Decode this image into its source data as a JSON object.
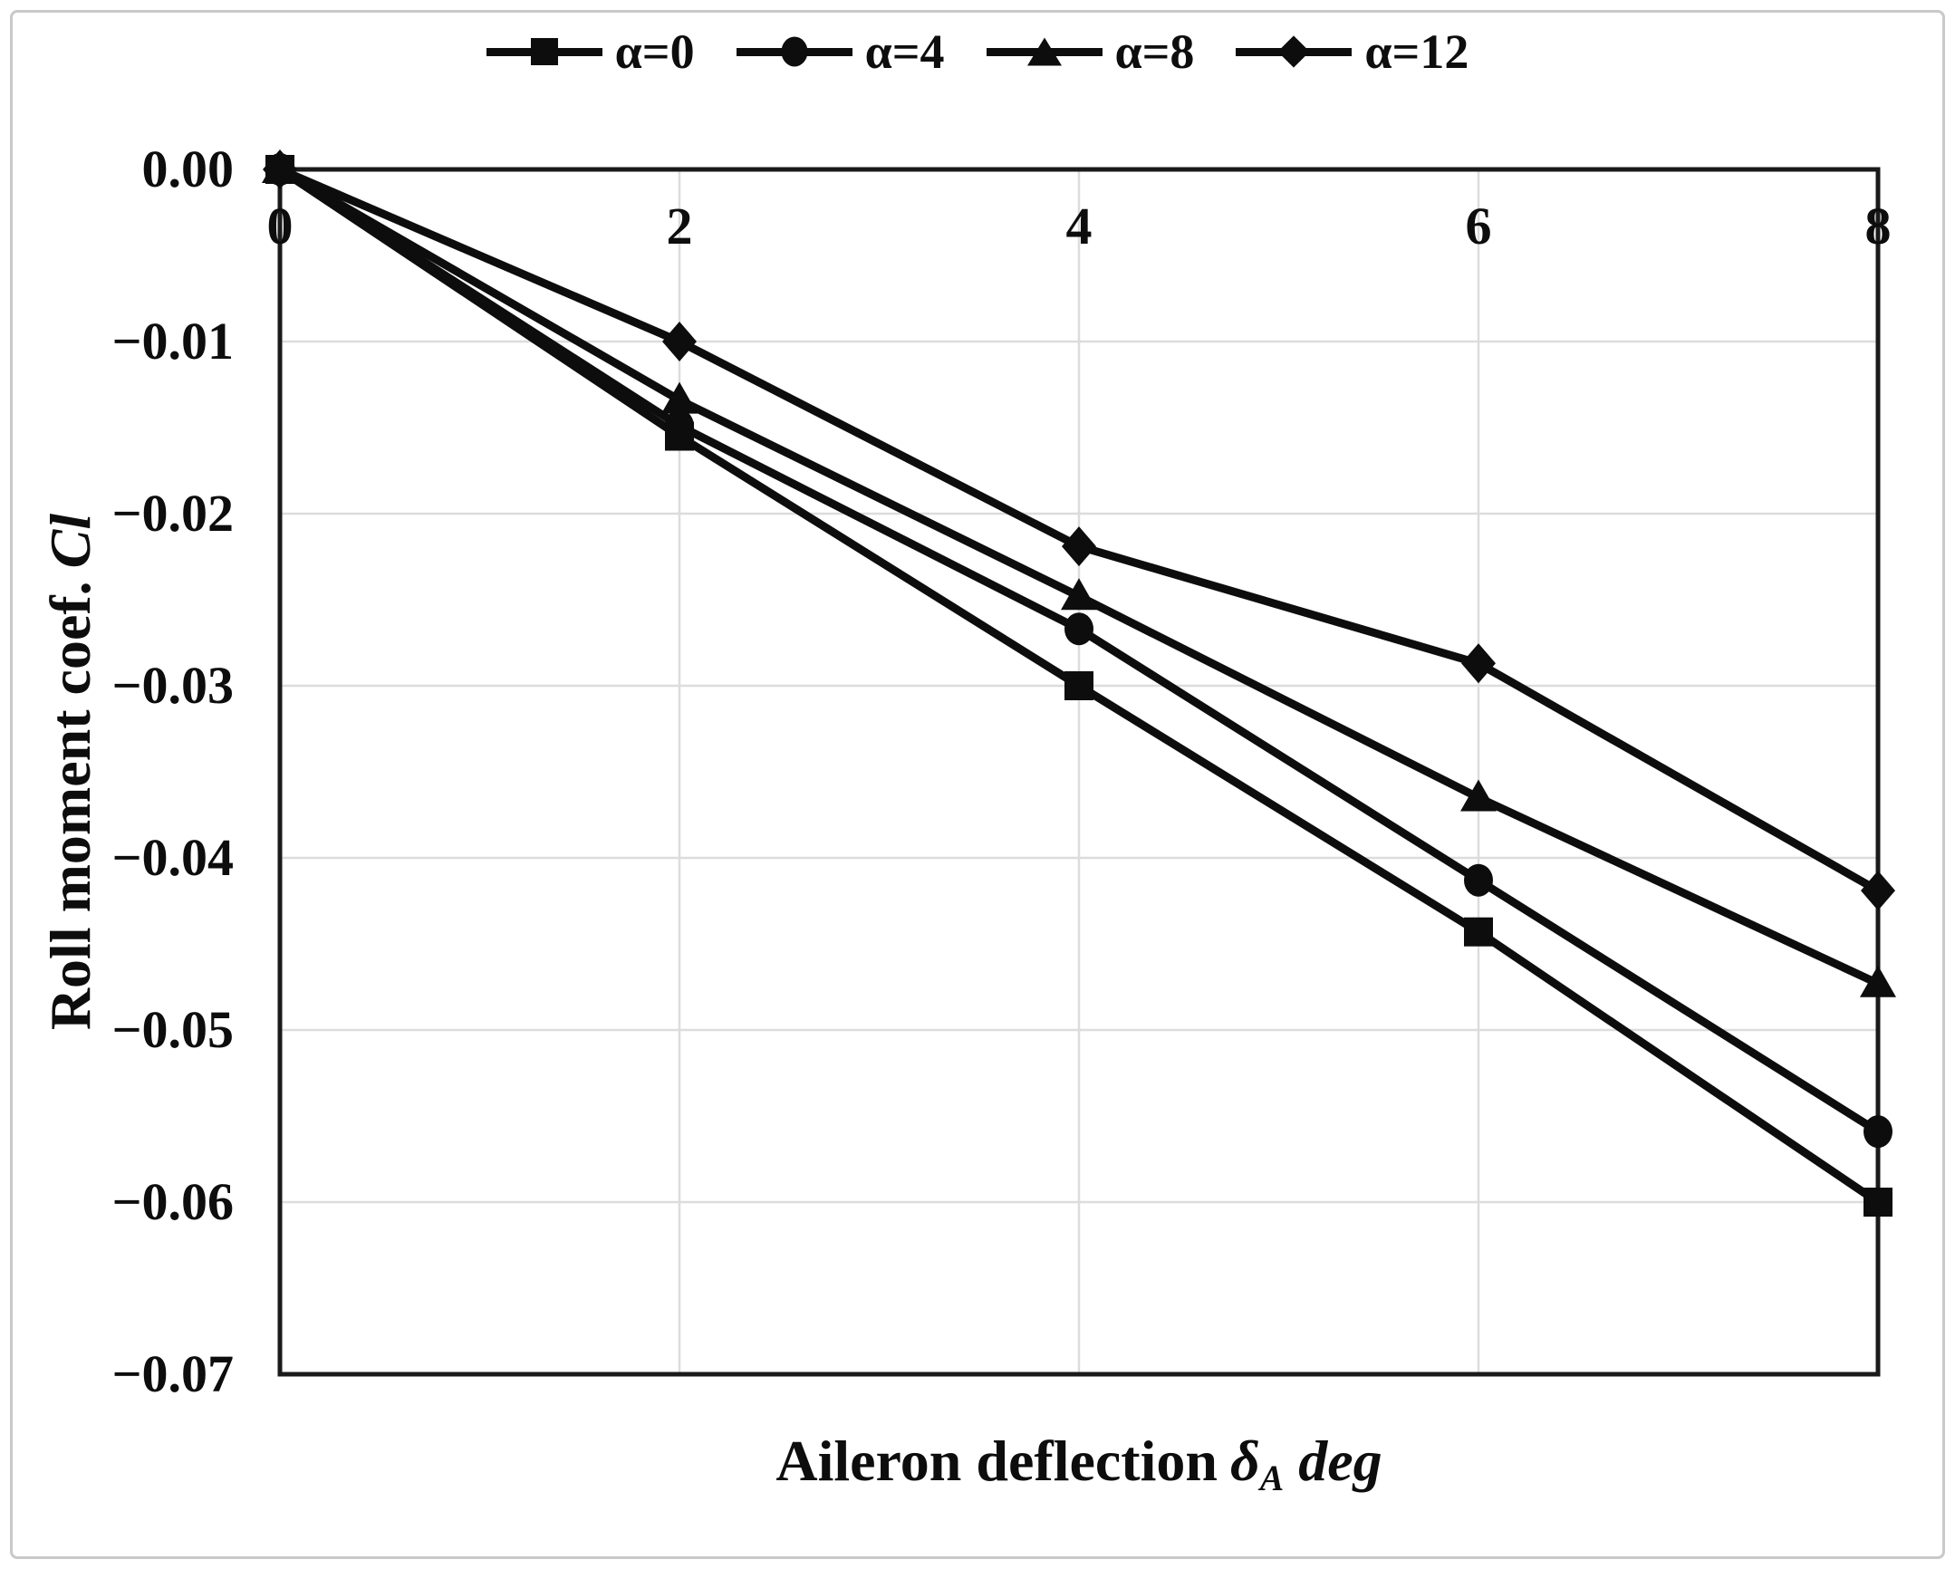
{
  "legend": {
    "items": [
      {
        "label": "α=0",
        "marker": "square"
      },
      {
        "label": "α=4",
        "marker": "circle"
      },
      {
        "label": "α=8",
        "marker": "triangle"
      },
      {
        "label": "α=12",
        "marker": "diamond"
      }
    ]
  },
  "axes": {
    "x_ticks": [
      "0",
      "2",
      "4",
      "6",
      "8"
    ],
    "y_ticks": [
      "0.00",
      "−0.01",
      "−0.02",
      "−0.03",
      "−0.04",
      "−0.05",
      "−0.06",
      "−0.07"
    ],
    "xlabel": {
      "main": "Aileron deflection",
      "symbol": "δ",
      "sub": "A",
      "unit": "deg"
    },
    "ylabel": {
      "main": "Roll moment coef.",
      "symbol": "Cl"
    }
  },
  "chart_data": {
    "type": "line",
    "title": "",
    "xlabel": "Aileron deflection δA deg",
    "ylabel": "Roll moment coef. Cl",
    "x": [
      0,
      2,
      4,
      6,
      8
    ],
    "series": [
      {
        "name": "α=0",
        "marker": "square",
        "values": [
          0.0,
          -0.0155,
          -0.03,
          -0.0443,
          -0.06
        ]
      },
      {
        "name": "α=4",
        "marker": "circle",
        "values": [
          0.0,
          -0.0149,
          -0.0267,
          -0.0413,
          -0.0559
        ]
      },
      {
        "name": "α=8",
        "marker": "triangle",
        "values": [
          0.0,
          -0.0134,
          -0.0248,
          -0.0365,
          -0.0473
        ]
      },
      {
        "name": "α=12",
        "marker": "diamond",
        "values": [
          0.0,
          -0.01,
          -0.0219,
          -0.0287,
          -0.0419
        ]
      }
    ],
    "xlim": [
      0,
      8
    ],
    "ylim": [
      -0.07,
      0
    ],
    "x_tick_values": [
      0,
      2,
      4,
      6,
      8
    ],
    "y_tick_values": [
      0.0,
      -0.01,
      -0.02,
      -0.03,
      -0.04,
      -0.05,
      -0.06,
      -0.07
    ],
    "x_gridlines": [
      2,
      4,
      6
    ],
    "y_gridlines": [
      -0.01,
      -0.02,
      -0.03,
      -0.04,
      -0.05,
      -0.06
    ],
    "grid": true,
    "legend_position": "top-center"
  },
  "colors": {
    "line": "#0d0d0d",
    "frame": "#1a1a1a",
    "grid": "#dcdcdc",
    "border": "#c9c9c9",
    "background": "#ffffff"
  }
}
